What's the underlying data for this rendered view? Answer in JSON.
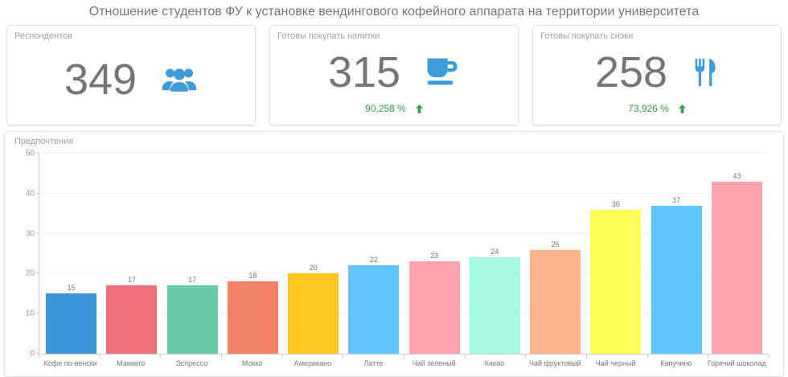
{
  "title": "Отношение студентов ФУ к установке вендингового кофейного аппарата на территории университета",
  "colors": {
    "icon_blue": "#3f9bd8",
    "positive_green": "#2f9e44",
    "value_gray": "#757575"
  },
  "cards": [
    {
      "label": "Респондентов",
      "value": "349",
      "icon": "users-icon"
    },
    {
      "label": "Готовы покупать напитки",
      "value": "315",
      "icon": "coffee-cup-icon",
      "percent": "90,258 %",
      "trend_icon": "arrow-up-icon"
    },
    {
      "label": "Готовы покупать снэки",
      "value": "258",
      "icon": "cutlery-icon",
      "percent": "73,926 %",
      "trend_icon": "arrow-up-icon"
    }
  ],
  "chart_data": {
    "type": "bar",
    "title": "Предпочтения",
    "categories": [
      "Кофе по-венски",
      "Макиато",
      "Эспрессо",
      "Мокко",
      "Американо",
      "Латте",
      "Чай зеленый",
      "Какао",
      "Чай фруктовый",
      "Чай черный",
      "Капучино",
      "Горячий шоколад"
    ],
    "values": [
      15,
      17,
      17,
      18,
      20,
      22,
      23,
      24,
      26,
      36,
      37,
      43
    ],
    "bar_colors": [
      "#3a96d9",
      "#ee6e7c",
      "#6bc8ab",
      "#f08164",
      "#fcc61e",
      "#61c5fb",
      "#fda3ae",
      "#a5f8e0",
      "#feb28e",
      "#fdfd55",
      "#61c5fb",
      "#fda3ae"
    ],
    "xlabel": "",
    "ylabel": "",
    "ylim": [
      0,
      50
    ],
    "yticks": [
      0,
      10,
      20,
      30,
      40,
      50
    ],
    "grid": true,
    "legend": false
  }
}
